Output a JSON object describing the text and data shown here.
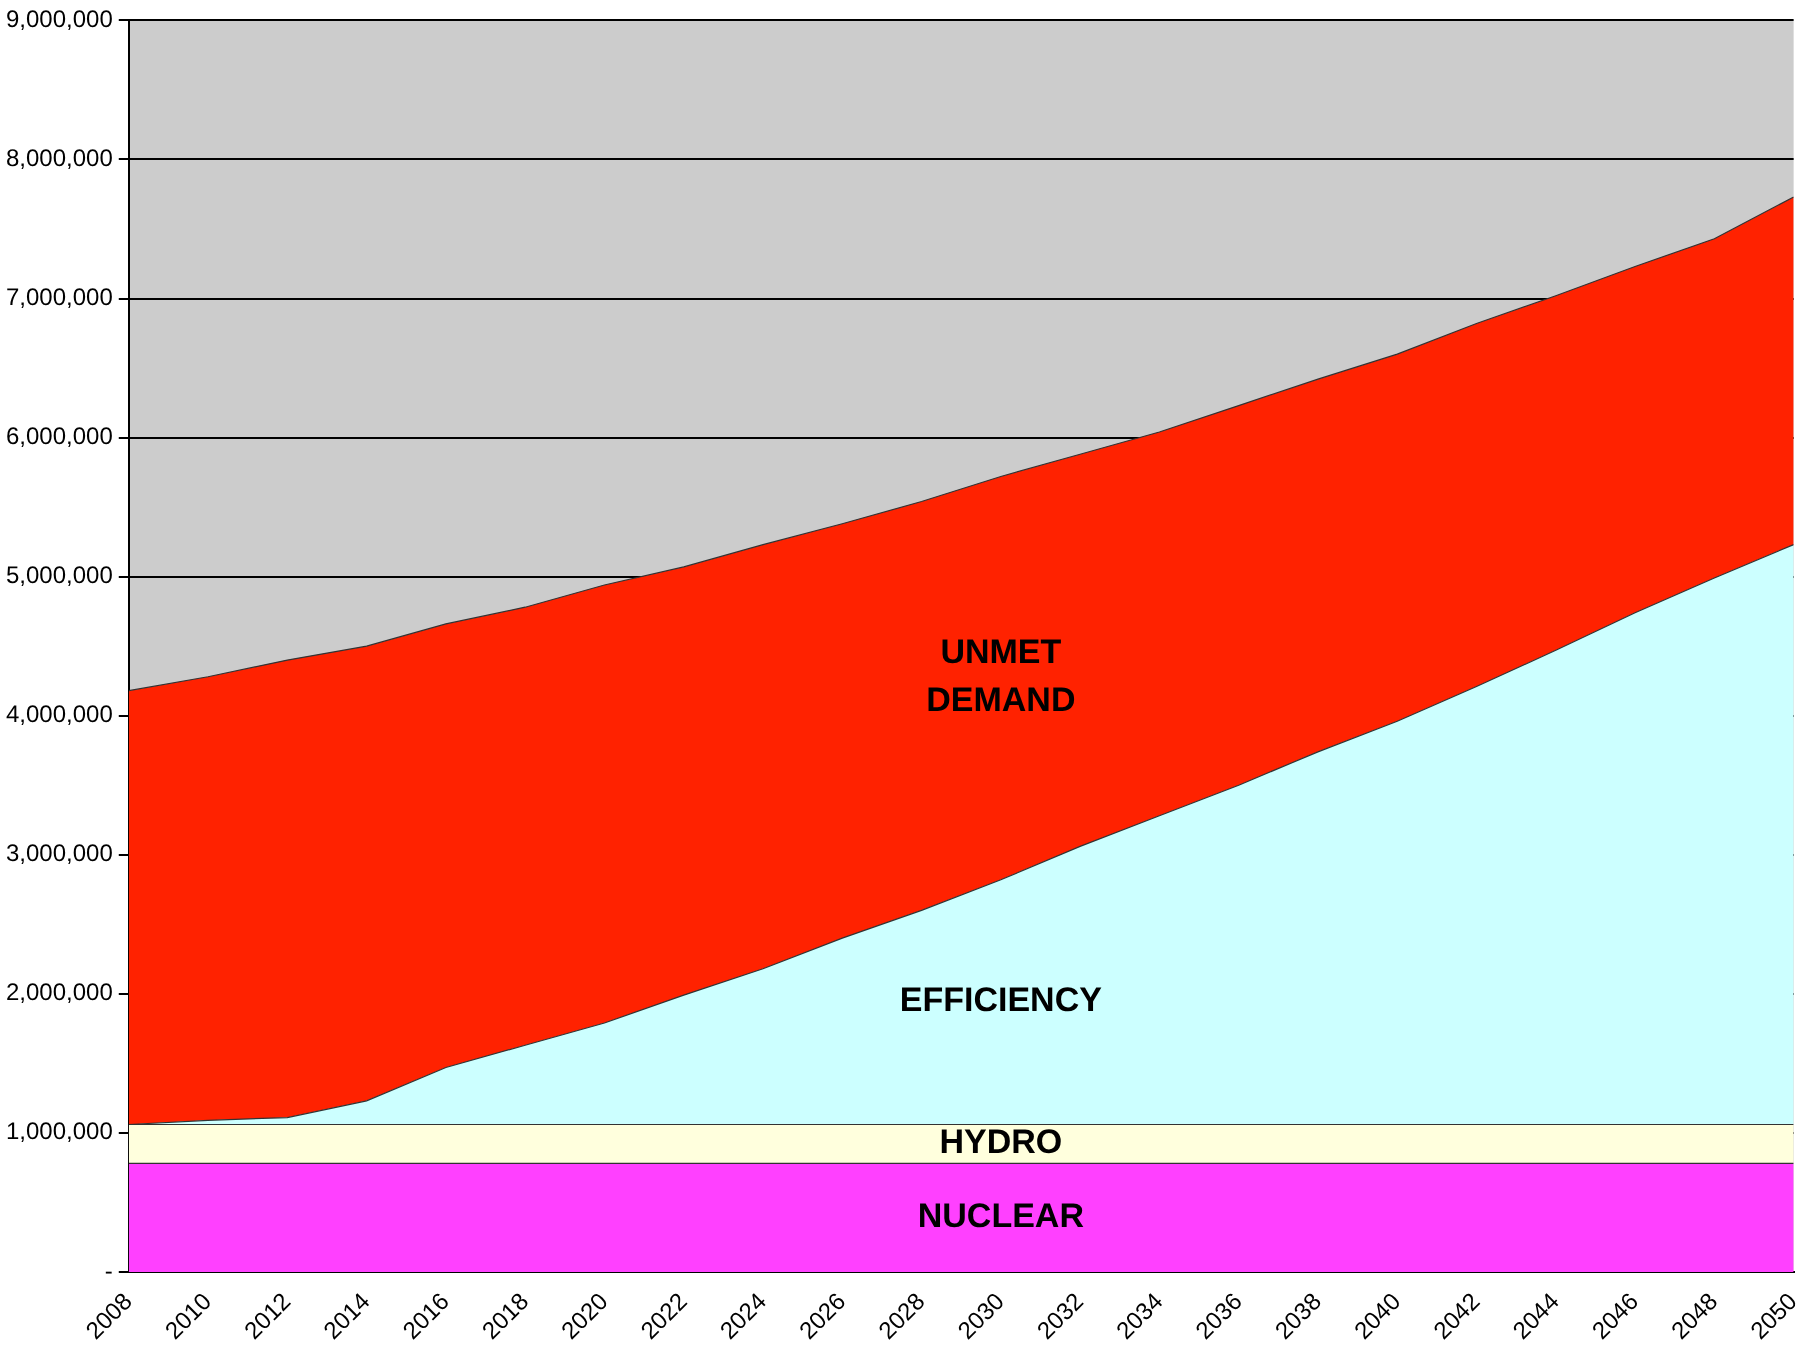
{
  "chart_data": {
    "type": "area",
    "stacked": true,
    "x": [
      2008,
      2010,
      2012,
      2014,
      2016,
      2018,
      2020,
      2022,
      2024,
      2026,
      2028,
      2030,
      2032,
      2034,
      2036,
      2038,
      2040,
      2042,
      2044,
      2046,
      2048,
      2050
    ],
    "series": [
      {
        "name": "NUCLEAR",
        "color": "#ff40ff",
        "values": [
          780000,
          780000,
          780000,
          780000,
          780000,
          780000,
          780000,
          780000,
          780000,
          780000,
          780000,
          780000,
          780000,
          780000,
          780000,
          780000,
          780000,
          780000,
          780000,
          780000,
          780000,
          780000
        ]
      },
      {
        "name": "HYDRO",
        "color": "#ffffdd",
        "values": [
          280000,
          280000,
          280000,
          280000,
          280000,
          280000,
          280000,
          280000,
          280000,
          280000,
          280000,
          280000,
          280000,
          280000,
          280000,
          280000,
          280000,
          280000,
          280000,
          280000,
          280000,
          280000
        ]
      },
      {
        "name": "EFFICIENCY",
        "color": "#ccffff",
        "values": [
          0,
          30000,
          50000,
          170000,
          410000,
          570000,
          730000,
          930000,
          1120000,
          1340000,
          1540000,
          1760000,
          2000000,
          2220000,
          2440000,
          2680000,
          2900000,
          3150000,
          3410000,
          3680000,
          3930000,
          4170000
        ]
      },
      {
        "name": "UNMET DEMAND",
        "color": "#ff2200",
        "values": [
          3120000,
          3190000,
          3290000,
          3270000,
          3190000,
          3150000,
          3150000,
          3080000,
          3050000,
          2980000,
          2940000,
          2900000,
          2820000,
          2760000,
          2730000,
          2680000,
          2640000,
          2610000,
          2550000,
          2490000,
          2440000,
          2500000
        ]
      }
    ],
    "xlim": [
      2008,
      2050
    ],
    "xticks": [
      2008,
      2010,
      2012,
      2014,
      2016,
      2018,
      2020,
      2022,
      2024,
      2026,
      2028,
      2030,
      2032,
      2034,
      2036,
      2038,
      2040,
      2042,
      2044,
      2046,
      2048,
      2050
    ],
    "ylim": [
      0,
      9000000
    ],
    "yticks": [
      {
        "value": 0,
        "label": "-"
      },
      {
        "value": 1000000,
        "label": "1,000,000"
      },
      {
        "value": 2000000,
        "label": "2,000,000"
      },
      {
        "value": 3000000,
        "label": "3,000,000"
      },
      {
        "value": 4000000,
        "label": "4,000,000"
      },
      {
        "value": 5000000,
        "label": "5,000,000"
      },
      {
        "value": 6000000,
        "label": "6,000,000"
      },
      {
        "value": 7000000,
        "label": "7,000,000"
      },
      {
        "value": 8000000,
        "label": "8,000,000"
      },
      {
        "value": 9000000,
        "label": "9,000,000"
      }
    ],
    "grid": "y",
    "legend": false
  }
}
